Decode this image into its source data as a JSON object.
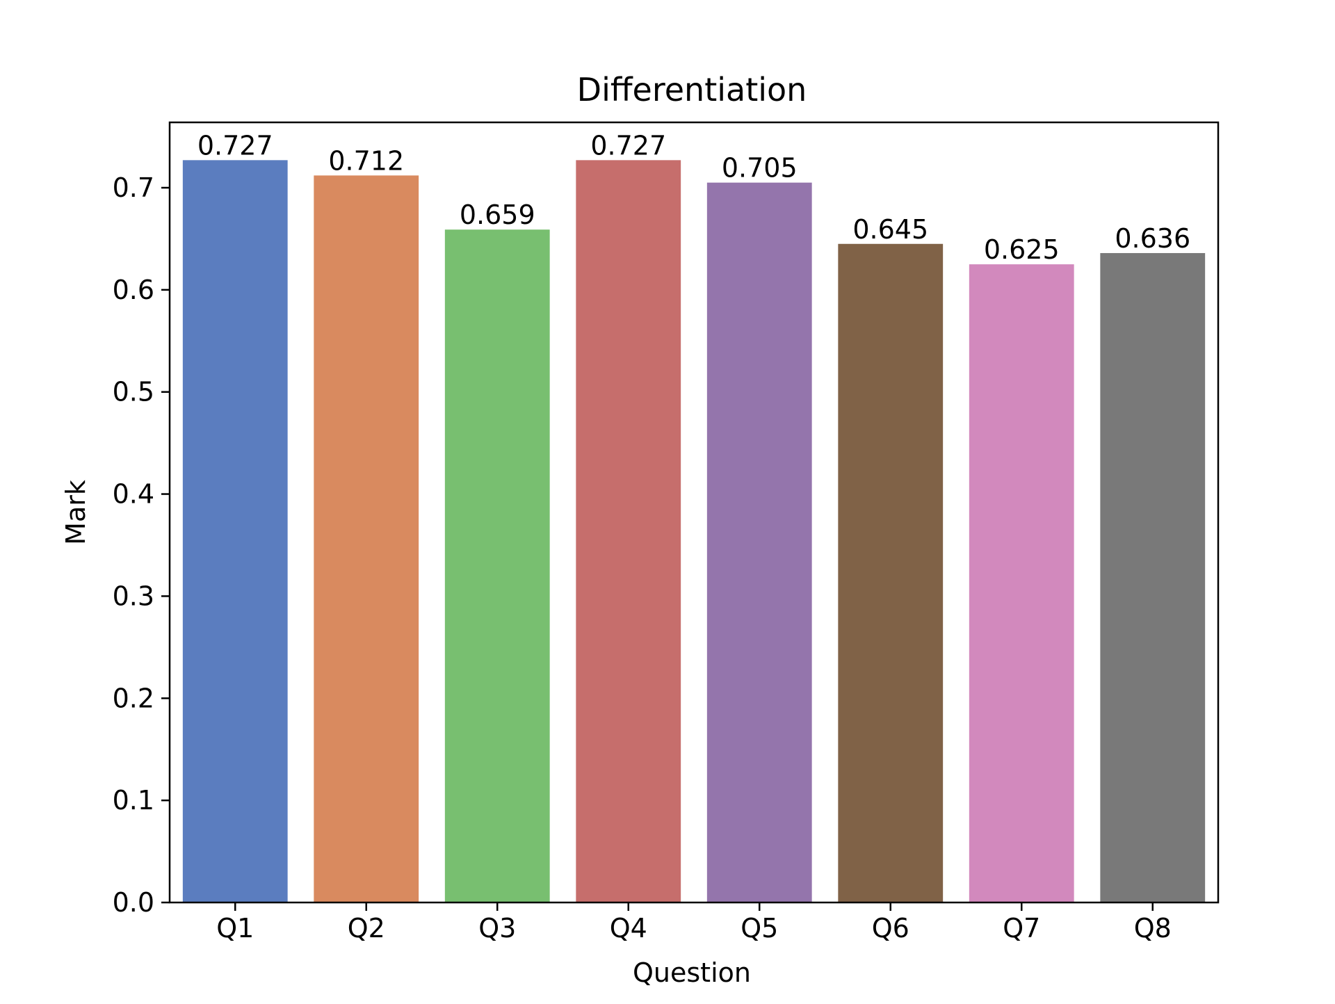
{
  "chart_data": {
    "type": "bar",
    "title": "Differentiation",
    "xlabel": "Question",
    "ylabel": "Mark",
    "categories": [
      "Q1",
      "Q2",
      "Q3",
      "Q4",
      "Q5",
      "Q6",
      "Q7",
      "Q8"
    ],
    "values": [
      0.727,
      0.712,
      0.659,
      0.727,
      0.705,
      0.645,
      0.625,
      0.636
    ],
    "value_labels": [
      "0.727",
      "0.712",
      "0.659",
      "0.727",
      "0.705",
      "0.645",
      "0.625",
      "0.636"
    ],
    "colors": [
      "#5b7dbf",
      "#d98a5f",
      "#78bf70",
      "#c66e6c",
      "#9475ac",
      "#806247",
      "#d289bd",
      "#797979"
    ],
    "ylim": [
      0,
      0.764
    ],
    "yticks": [
      0.0,
      0.1,
      0.2,
      0.3,
      0.4,
      0.5,
      0.6,
      0.7
    ],
    "ytick_labels": [
      "0.0",
      "0.1",
      "0.2",
      "0.3",
      "0.4",
      "0.5",
      "0.6",
      "0.7"
    ],
    "grid": false,
    "legend": "none"
  }
}
